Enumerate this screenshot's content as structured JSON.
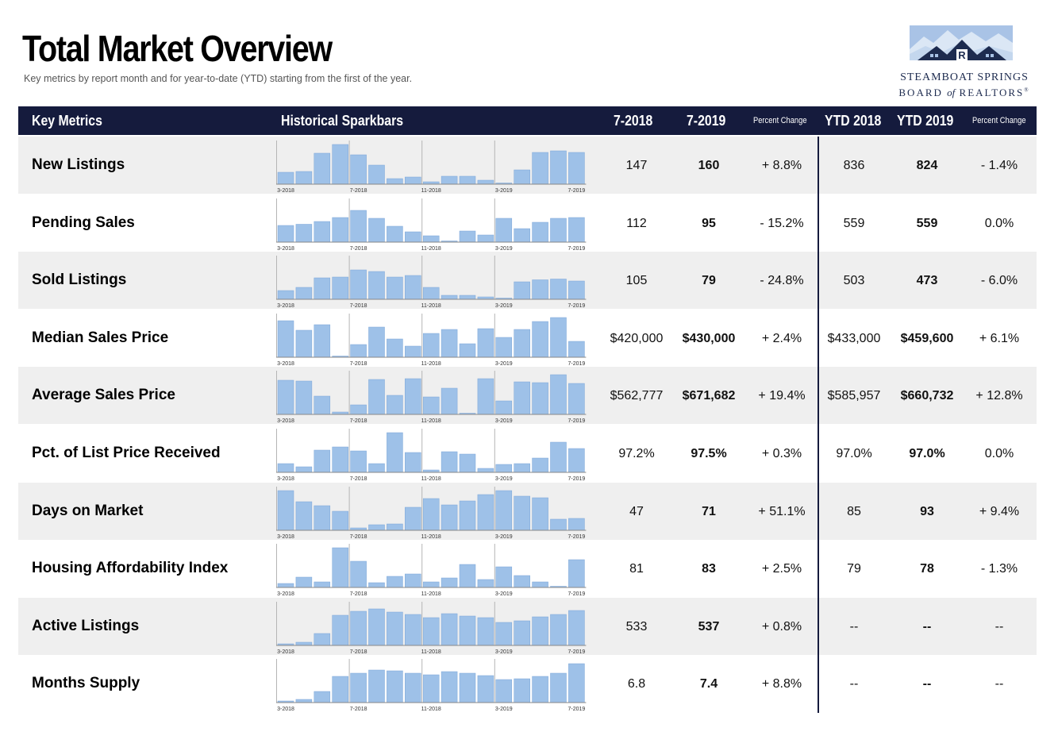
{
  "page": {
    "title": "Total Market Overview",
    "subtitle": "Key metrics by report month and for year-to-date (YTD) starting from the first of the year."
  },
  "logo": {
    "line1": "STEAMBOAT SPRINGS",
    "line2_prefix": "BOARD ",
    "line2_italic": "of",
    "line2_suffix": " REALTORS",
    "line2_mark": "®",
    "colors": {
      "sky": "#a9c3e6",
      "roof": "#1d2b4f",
      "text": "#1d2b4f"
    }
  },
  "header": {
    "key_metrics": "Key Metrics",
    "historical_sparkbars": "Historical Sparkbars",
    "col_7_2018": "7-2018",
    "col_7_2019": "7-2019",
    "percent_change_1": "Percent Change",
    "ytd_2018": "YTD 2018",
    "ytd_2019": "YTD 2019",
    "percent_change_2": "Percent Change",
    "background": "#151b3d"
  },
  "colors": {
    "bar": "#9ec1e8",
    "bar_edge": "#7aa6d8",
    "axis": "#888888",
    "row_shade": "#efefef"
  },
  "rows": [
    {
      "name": "New Listings",
      "v2018": "147",
      "v2019": "160",
      "pct": "+ 8.8%",
      "ytd2018": "836",
      "ytd2019": "824",
      "ytd_pct": "- 1.4%"
    },
    {
      "name": "Pending Sales",
      "v2018": "112",
      "v2019": "95",
      "pct": "- 15.2%",
      "ytd2018": "559",
      "ytd2019": "559",
      "ytd_pct": "0.0%"
    },
    {
      "name": "Sold Listings",
      "v2018": "105",
      "v2019": "79",
      "pct": "- 24.8%",
      "ytd2018": "503",
      "ytd2019": "473",
      "ytd_pct": "- 6.0%"
    },
    {
      "name": "Median Sales Price",
      "v2018": "$420,000",
      "v2019": "$430,000",
      "pct": "+ 2.4%",
      "ytd2018": "$433,000",
      "ytd2019": "$459,600",
      "ytd_pct": "+ 6.1%"
    },
    {
      "name": "Average Sales Price",
      "v2018": "$562,777",
      "v2019": "$671,682",
      "pct": "+ 19.4%",
      "ytd2018": "$585,957",
      "ytd2019": "$660,732",
      "ytd_pct": "+ 12.8%"
    },
    {
      "name": "Pct. of List Price Received",
      "v2018": "97.2%",
      "v2019": "97.5%",
      "pct": "+ 0.3%",
      "ytd2018": "97.0%",
      "ytd2019": "97.0%",
      "ytd_pct": "0.0%"
    },
    {
      "name": "Days on Market",
      "v2018": "47",
      "v2019": "71",
      "pct": "+ 51.1%",
      "ytd2018": "85",
      "ytd2019": "93",
      "ytd_pct": "+ 9.4%"
    },
    {
      "name": "Housing Affordability Index",
      "v2018": "81",
      "v2019": "83",
      "pct": "+ 2.5%",
      "ytd2018": "79",
      "ytd2019": "78",
      "ytd_pct": "- 1.3%"
    },
    {
      "name": "Active Listings",
      "v2018": "533",
      "v2019": "537",
      "pct": "+ 0.8%",
      "ytd2018": "--",
      "ytd2019": "--",
      "ytd_pct": "--"
    },
    {
      "name": "Months Supply",
      "v2018": "6.8",
      "v2019": "7.4",
      "pct": "+ 8.8%",
      "ytd2018": "--",
      "ytd2019": "--",
      "ytd_pct": "--"
    }
  ],
  "chart_data": {
    "type": "bar",
    "x_tick_labels": [
      "3-2018",
      "7-2018",
      "11-2018",
      "3-2019",
      "7-2019"
    ],
    "months": 17,
    "series": [
      {
        "metric": "New Listings",
        "values": [
          0.3,
          0.32,
          0.78,
          1.0,
          0.74,
          0.48,
          0.14,
          0.18,
          0.06,
          0.2,
          0.2,
          0.1,
          0.02,
          0.36,
          0.8,
          0.84,
          0.8
        ]
      },
      {
        "metric": "Pending Sales",
        "values": [
          0.42,
          0.45,
          0.52,
          0.62,
          0.8,
          0.6,
          0.4,
          0.26,
          0.16,
          0.02,
          0.28,
          0.18,
          0.6,
          0.34,
          0.5,
          0.6,
          0.62
        ]
      },
      {
        "metric": "Sold Listings",
        "values": [
          0.22,
          0.3,
          0.54,
          0.56,
          0.74,
          0.7,
          0.56,
          0.6,
          0.3,
          0.1,
          0.1,
          0.06,
          0.02,
          0.44,
          0.49,
          0.51,
          0.46
        ]
      },
      {
        "metric": "Median Sales Price",
        "values": [
          0.92,
          0.68,
          0.82,
          0.02,
          0.32,
          0.76,
          0.46,
          0.28,
          0.6,
          0.7,
          0.34,
          0.72,
          0.5,
          0.7,
          0.9,
          1.0,
          0.4
        ]
      },
      {
        "metric": "Average Sales Price",
        "values": [
          0.86,
          0.84,
          0.46,
          0.06,
          0.24,
          0.88,
          0.48,
          0.9,
          0.44,
          0.66,
          0.02,
          0.9,
          0.34,
          0.82,
          0.8,
          1.0,
          0.78
        ]
      },
      {
        "metric": "Pct. of List Price Received",
        "values": [
          0.22,
          0.14,
          0.56,
          0.64,
          0.54,
          0.22,
          1.0,
          0.5,
          0.06,
          0.52,
          0.46,
          0.1,
          0.2,
          0.22,
          0.36,
          0.76,
          0.6
        ]
      },
      {
        "metric": "Days on Market",
        "values": [
          1.0,
          0.72,
          0.62,
          0.48,
          0.06,
          0.14,
          0.16,
          0.58,
          0.8,
          0.64,
          0.74,
          0.9,
          1.0,
          0.86,
          0.82,
          0.28,
          0.3
        ]
      },
      {
        "metric": "Housing Affordability Index",
        "values": [
          0.1,
          0.26,
          0.14,
          1.0,
          0.66,
          0.12,
          0.28,
          0.34,
          0.14,
          0.24,
          0.58,
          0.2,
          0.52,
          0.3,
          0.14,
          0.02,
          0.7
        ]
      },
      {
        "metric": "Active Listings",
        "values": [
          0.04,
          0.08,
          0.3,
          0.76,
          0.86,
          0.92,
          0.84,
          0.78,
          0.7,
          0.8,
          0.74,
          0.7,
          0.58,
          0.62,
          0.72,
          0.78,
          0.88
        ]
      },
      {
        "metric": "Months Supply",
        "values": [
          0.04,
          0.08,
          0.28,
          0.66,
          0.74,
          0.82,
          0.8,
          0.74,
          0.7,
          0.78,
          0.74,
          0.68,
          0.58,
          0.6,
          0.66,
          0.74,
          0.98
        ]
      }
    ]
  }
}
